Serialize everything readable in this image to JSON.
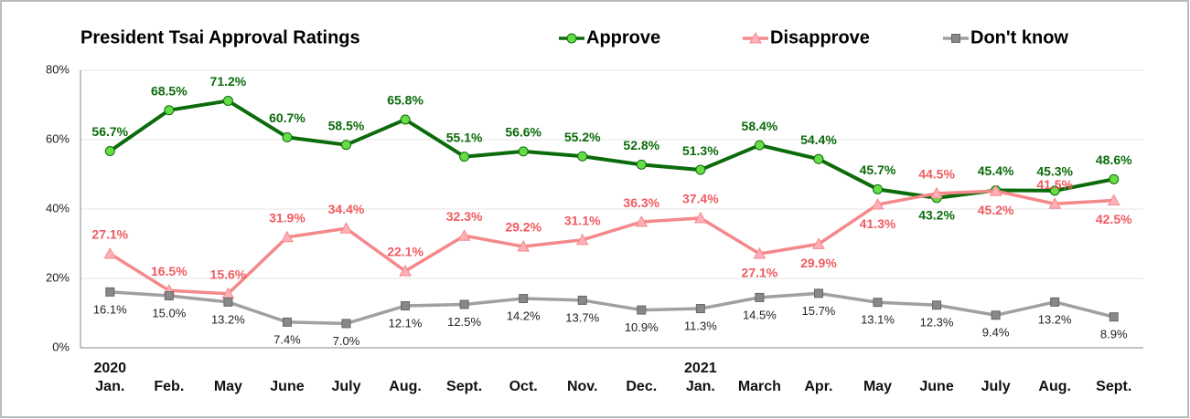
{
  "chart_data": {
    "type": "line",
    "title": "President Tsai Approval Ratings",
    "categories": [
      "Jan.",
      "Feb.",
      "May",
      "June",
      "July",
      "Aug.",
      "Sept.",
      "Oct.",
      "Nov.",
      "Dec.",
      "Jan.",
      "March",
      "Apr.",
      "May",
      "June",
      "July",
      "Aug.",
      "Sept."
    ],
    "category_years": [
      "2020",
      null,
      null,
      null,
      null,
      null,
      null,
      null,
      null,
      null,
      "2021",
      null,
      null,
      null,
      null,
      null,
      null,
      null
    ],
    "ylim": [
      0,
      80
    ],
    "yticks": [
      {
        "value": 0,
        "label": "0%"
      },
      {
        "value": 20,
        "label": "20%"
      },
      {
        "value": 40,
        "label": "40%"
      },
      {
        "value": 60,
        "label": "60%"
      },
      {
        "value": 80,
        "label": "80%"
      }
    ],
    "grid": true,
    "series": [
      {
        "name": "Approve",
        "color": "#0b6b0b",
        "marker_color": "#66dd44",
        "values": [
          56.7,
          68.5,
          71.2,
          60.7,
          58.5,
          65.8,
          55.1,
          56.6,
          55.2,
          52.8,
          51.3,
          58.4,
          54.4,
          45.7,
          43.2,
          45.4,
          45.3,
          48.6
        ],
        "value_labels": [
          "56.7%",
          "68.5%",
          "71.2%",
          "60.7%",
          "58.5%",
          "65.8%",
          "55.1%",
          "56.6%",
          "55.2%",
          "52.8%",
          "51.3%",
          "58.4%",
          "54.4%",
          "45.7%",
          "43.2%",
          "45.4%",
          "45.3%",
          "48.6%"
        ]
      },
      {
        "name": "Disapprove",
        "color": "#f4888a",
        "marker_color": "#ffb0b8",
        "values": [
          27.1,
          16.5,
          15.6,
          31.9,
          34.4,
          22.1,
          32.3,
          29.2,
          31.1,
          36.3,
          37.4,
          27.1,
          29.9,
          41.3,
          44.5,
          45.2,
          41.5,
          42.5
        ],
        "value_labels": [
          "27.1%",
          "16.5%",
          "15.6%",
          "31.9%",
          "34.4%",
          "22.1%",
          "32.3%",
          "29.2%",
          "31.1%",
          "36.3%",
          "37.4%",
          "27.1%",
          "29.9%",
          "41.3%",
          "44.5%",
          "45.2%",
          "41.5%",
          "42.5%"
        ]
      },
      {
        "name": "Don't know",
        "color": "#a0a0a0",
        "marker_color": "#888888",
        "values": [
          16.1,
          15.0,
          13.2,
          7.4,
          7.0,
          12.1,
          12.5,
          14.2,
          13.7,
          10.9,
          11.3,
          14.5,
          15.7,
          13.1,
          12.3,
          9.4,
          13.2,
          8.9
        ],
        "value_labels": [
          "16.1%",
          "15.0%",
          "13.2%",
          "7.4%",
          "7.0%",
          "12.1%",
          "12.5%",
          "14.2%",
          "13.7%",
          "10.9%",
          "11.3%",
          "14.5%",
          "15.7%",
          "13.1%",
          "12.3%",
          "9.4%",
          "13.2%",
          "8.9%"
        ]
      }
    ]
  }
}
